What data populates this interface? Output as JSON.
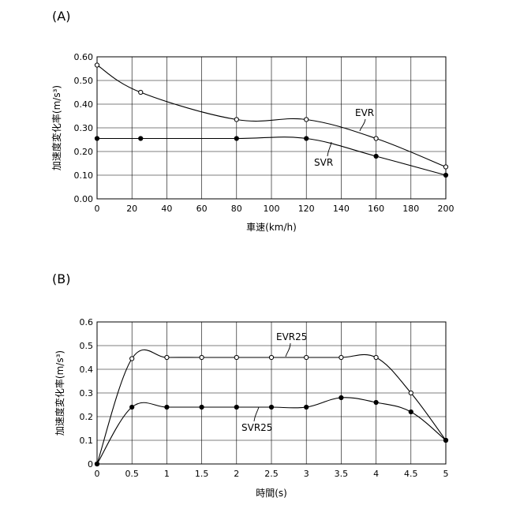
{
  "chart_data": [
    {
      "panel_label": "(A)",
      "type": "line",
      "xlabel": "車速(km/h)",
      "ylabel": "加速度変化率(m/s³)",
      "xlim": [
        0,
        200
      ],
      "ylim": [
        0,
        0.6
      ],
      "xticks": [
        0,
        20,
        40,
        60,
        80,
        100,
        120,
        140,
        160,
        180,
        200
      ],
      "xtick_labels": [
        "0",
        "20",
        "40",
        "60",
        "80",
        "100",
        "120",
        "140",
        "160",
        "180",
        "200"
      ],
      "yticks": [
        0,
        0.1,
        0.2,
        0.3,
        0.4,
        0.5,
        0.6
      ],
      "ytick_labels": [
        "0.00",
        "0.10",
        "0.20",
        "0.30",
        "0.40",
        "0.50",
        "0.60"
      ],
      "grid": true,
      "series": [
        {
          "name": "EVR",
          "marker": "open",
          "x": [
            0,
            25,
            80,
            120,
            160,
            200
          ],
          "y": [
            0.565,
            0.45,
            0.335,
            0.335,
            0.255,
            0.135
          ]
        },
        {
          "name": "SVR",
          "marker": "filled",
          "x": [
            0,
            25,
            80,
            120,
            160,
            200
          ],
          "y": [
            0.255,
            0.255,
            0.255,
            0.255,
            0.18,
            0.1
          ]
        }
      ]
    },
    {
      "panel_label": "(B)",
      "type": "line",
      "xlabel": "時間(s)",
      "ylabel": "加速度変化率(m/s³)",
      "xlim": [
        0,
        5
      ],
      "ylim": [
        0,
        0.6
      ],
      "xticks": [
        0,
        0.5,
        1,
        1.5,
        2,
        2.5,
        3,
        3.5,
        4,
        4.5,
        5
      ],
      "xtick_labels": [
        "0",
        "0.5",
        "1",
        "1.5",
        "2",
        "2.5",
        "3",
        "3.5",
        "4",
        "4.5",
        "5"
      ],
      "yticks": [
        0,
        0.1,
        0.2,
        0.3,
        0.4,
        0.5,
        0.6
      ],
      "ytick_labels": [
        "0",
        "0.1",
        "0.2",
        "0.3",
        "0.4",
        "0.5",
        "0.6"
      ],
      "grid": true,
      "series": [
        {
          "name": "EVR25",
          "marker": "open",
          "x": [
            0,
            0.5,
            1,
            1.5,
            2,
            2.5,
            3,
            3.5,
            4,
            4.5,
            5
          ],
          "y": [
            0,
            0.445,
            0.45,
            0.45,
            0.45,
            0.45,
            0.45,
            0.45,
            0.45,
            0.3,
            0.1
          ]
        },
        {
          "name": "SVR25",
          "marker": "filled",
          "x": [
            0,
            0.5,
            1,
            1.5,
            2,
            2.5,
            3,
            3.5,
            4,
            4.5,
            5
          ],
          "y": [
            0,
            0.24,
            0.24,
            0.24,
            0.24,
            0.24,
            0.24,
            0.28,
            0.26,
            0.22,
            0.1
          ]
        }
      ]
    }
  ]
}
